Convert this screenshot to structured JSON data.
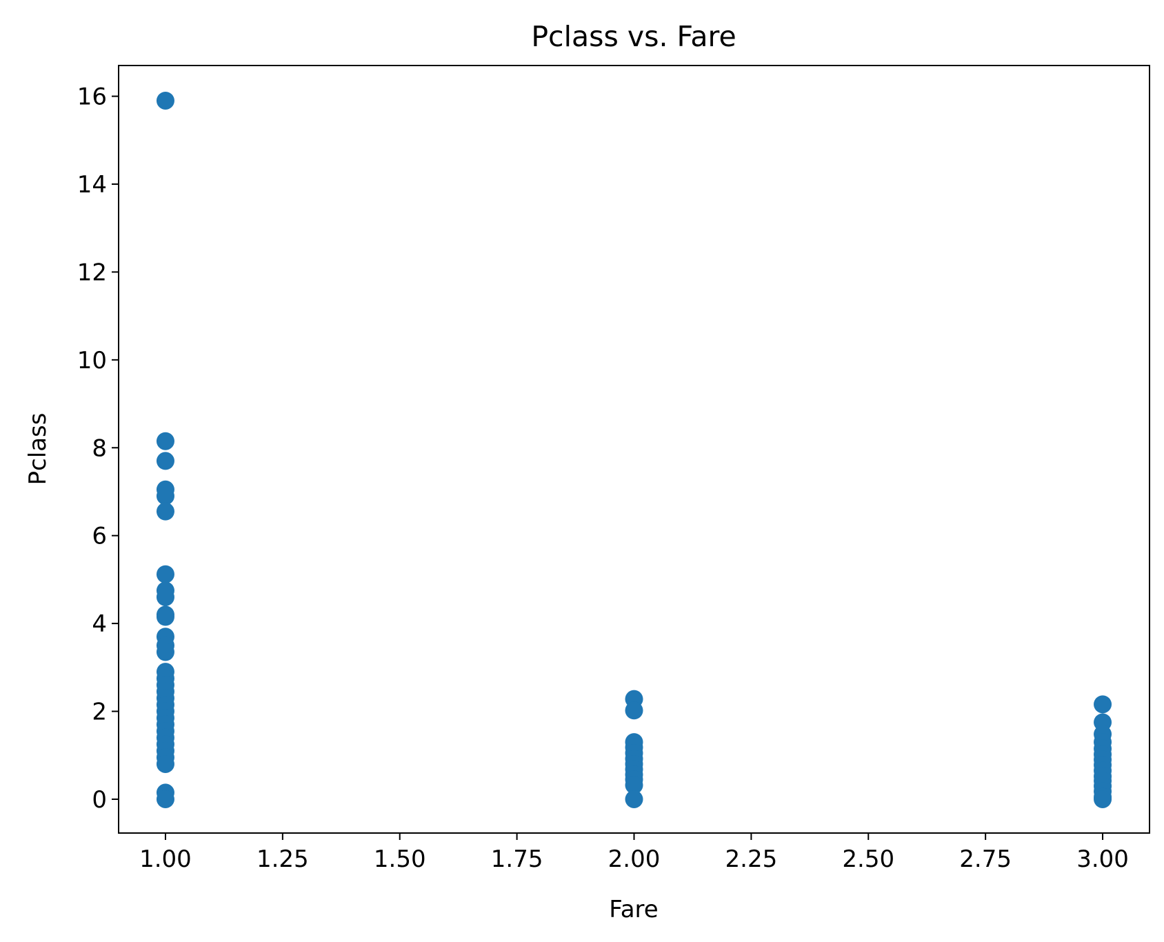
{
  "chart_data": {
    "type": "scatter",
    "title": "Pclass vs. Fare",
    "xlabel": "Fare",
    "ylabel": "Pclass",
    "xlim": [
      0.9,
      3.1
    ],
    "ylim": [
      -0.77,
      16.7
    ],
    "x_ticks": [
      {
        "value": 1.0,
        "label": "1.00"
      },
      {
        "value": 1.25,
        "label": "1.25"
      },
      {
        "value": 1.5,
        "label": "1.50"
      },
      {
        "value": 1.75,
        "label": "1.75"
      },
      {
        "value": 2.0,
        "label": "2.00"
      },
      {
        "value": 2.25,
        "label": "2.25"
      },
      {
        "value": 2.5,
        "label": "2.50"
      },
      {
        "value": 2.75,
        "label": "2.75"
      },
      {
        "value": 3.0,
        "label": "3.00"
      }
    ],
    "y_ticks": [
      {
        "value": 0,
        "label": "0"
      },
      {
        "value": 2,
        "label": "2"
      },
      {
        "value": 4,
        "label": "4"
      },
      {
        "value": 6,
        "label": "6"
      },
      {
        "value": 8,
        "label": "8"
      },
      {
        "value": 10,
        "label": "10"
      },
      {
        "value": 12,
        "label": "12"
      },
      {
        "value": 14,
        "label": "14"
      },
      {
        "value": 16,
        "label": "16"
      }
    ],
    "grid": false,
    "legend": "none",
    "marker_color": "#1f77b4",
    "series": [
      {
        "points": [
          [
            1,
            15.9
          ],
          [
            1,
            8.15
          ],
          [
            1,
            7.7
          ],
          [
            1,
            7.05
          ],
          [
            1,
            6.9
          ],
          [
            1,
            6.55
          ],
          [
            1,
            5.12
          ],
          [
            1,
            4.75
          ],
          [
            1,
            4.6
          ],
          [
            1,
            4.2
          ],
          [
            1,
            4.15
          ],
          [
            1,
            3.7
          ],
          [
            1,
            3.5
          ],
          [
            1,
            3.35
          ],
          [
            1,
            2.9
          ],
          [
            1,
            2.75
          ],
          [
            1,
            2.6
          ],
          [
            1,
            2.45
          ],
          [
            1,
            2.3
          ],
          [
            1,
            2.15
          ],
          [
            1,
            2.0
          ],
          [
            1,
            1.85
          ],
          [
            1,
            1.7
          ],
          [
            1,
            1.55
          ],
          [
            1,
            1.4
          ],
          [
            1,
            1.25
          ],
          [
            1,
            1.1
          ],
          [
            1,
            0.95
          ],
          [
            1,
            0.8
          ],
          [
            1,
            0.15
          ],
          [
            1,
            0.0
          ],
          [
            2,
            2.28
          ],
          [
            2,
            2.02
          ],
          [
            2,
            1.3
          ],
          [
            2,
            1.18
          ],
          [
            2,
            1.05
          ],
          [
            2,
            0.92
          ],
          [
            2,
            0.8
          ],
          [
            2,
            0.68
          ],
          [
            2,
            0.56
          ],
          [
            2,
            0.45
          ],
          [
            2,
            0.32
          ],
          [
            2,
            0.0
          ],
          [
            3,
            2.16
          ],
          [
            3,
            1.75
          ],
          [
            3,
            1.48
          ],
          [
            3,
            1.3
          ],
          [
            3,
            1.15
          ],
          [
            3,
            1.02
          ],
          [
            3,
            0.9
          ],
          [
            3,
            0.78
          ],
          [
            3,
            0.65
          ],
          [
            3,
            0.52
          ],
          [
            3,
            0.42
          ],
          [
            3,
            0.3
          ],
          [
            3,
            0.18
          ],
          [
            3,
            0.05
          ],
          [
            3,
            0.0
          ]
        ]
      }
    ]
  }
}
